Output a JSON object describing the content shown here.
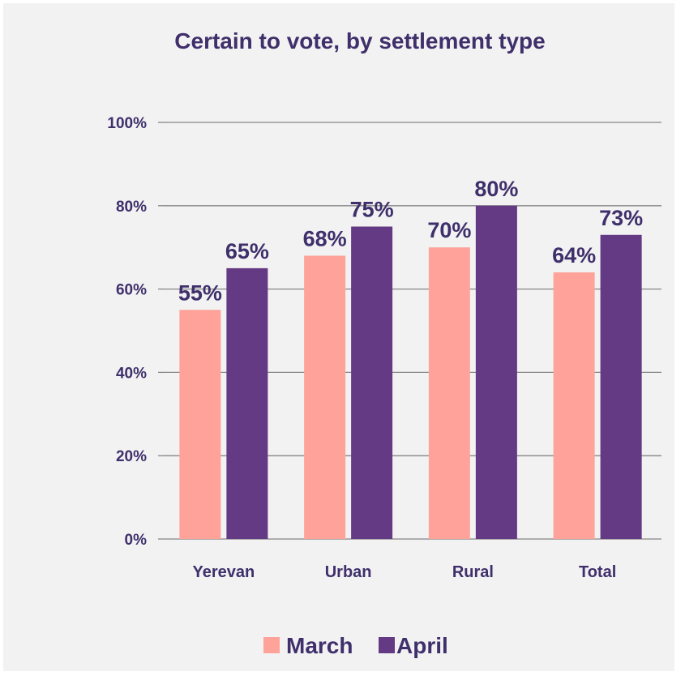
{
  "chart_data": {
    "type": "bar",
    "title": "Certain to vote, by settlement type",
    "categories": [
      "Yerevan",
      "Urban",
      "Rural",
      "Total"
    ],
    "series": [
      {
        "name": "March",
        "values": [
          55,
          68,
          70,
          64
        ],
        "labels": [
          "55%",
          "68%",
          "70%",
          "64%"
        ],
        "color": "#ffa29a"
      },
      {
        "name": "April",
        "values": [
          65,
          75,
          80,
          73
        ],
        "labels": [
          "65%",
          "75%",
          "80%",
          "73%"
        ],
        "color": "#643a84"
      }
    ],
    "ylim": [
      0,
      100
    ],
    "yticks": [
      0,
      20,
      40,
      60,
      80,
      100
    ],
    "ytick_labels": [
      "0%",
      "20%",
      "40%",
      "60%",
      "80%",
      "100%"
    ],
    "grid": true,
    "legend_position": "bottom",
    "title_color": "#3f2f6b",
    "text_color": "#3f2f6b",
    "grid_color": "#868686"
  }
}
